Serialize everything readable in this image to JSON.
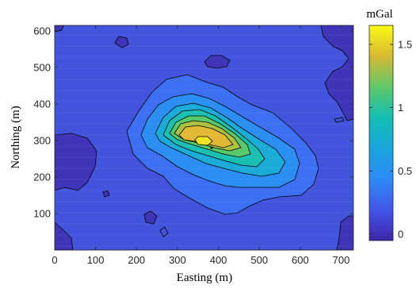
{
  "chart_data": {
    "type": "heatmap",
    "subtype": "filled-contour",
    "title": "",
    "xlabel": "Easting (m)",
    "ylabel": "Northing (m)",
    "xlim": [
      0,
      730
    ],
    "ylim": [
      0,
      615
    ],
    "x_ticks": [
      0,
      100,
      200,
      300,
      400,
      500,
      600,
      700
    ],
    "y_ticks": [
      100,
      200,
      300,
      400,
      500,
      600
    ],
    "grid": false,
    "colormap": "parula",
    "colorbar": {
      "title": "mGal",
      "range": [
        -0.05,
        1.65
      ],
      "ticks": [
        0,
        0.5,
        1,
        1.5
      ],
      "tick_labels": [
        "0",
        "0.5",
        "1",
        "1.5"
      ],
      "placement": "right"
    },
    "contour_levels": [
      0.2,
      0.4,
      0.6,
      0.8,
      1.0,
      1.2,
      1.4,
      1.55
    ],
    "anomaly_peak": {
      "x": 365,
      "y": 270,
      "value": 1.6
    },
    "lows": [
      {
        "x": 30,
        "y": 225,
        "value": 0.05
      },
      {
        "x": 70,
        "y": 20,
        "value": 0.0
      },
      {
        "x": 600,
        "y": 560,
        "value": 0.05
      },
      {
        "x": 240,
        "y": 560,
        "value": 0.05
      },
      {
        "x": 720,
        "y": 20,
        "value": 0.05
      }
    ]
  }
}
